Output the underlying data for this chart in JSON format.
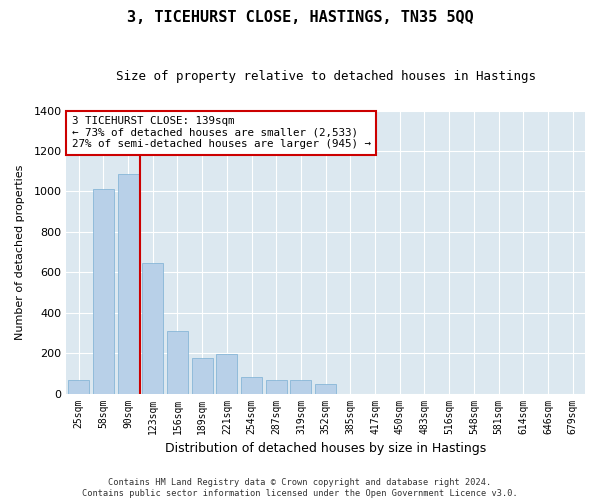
{
  "title": "3, TICEHURST CLOSE, HASTINGS, TN35 5QQ",
  "subtitle": "Size of property relative to detached houses in Hastings",
  "xlabel": "Distribution of detached houses by size in Hastings",
  "ylabel": "Number of detached properties",
  "footer_line1": "Contains HM Land Registry data © Crown copyright and database right 2024.",
  "footer_line2": "Contains public sector information licensed under the Open Government Licence v3.0.",
  "annotation_line1": "3 TICEHURST CLOSE: 139sqm",
  "annotation_line2": "← 73% of detached houses are smaller (2,533)",
  "annotation_line3": "27% of semi-detached houses are larger (945) →",
  "bar_color": "#b8d0e8",
  "bar_edge_color": "#7aafd4",
  "redline_color": "#cc0000",
  "annotation_box_color": "#cc0000",
  "fig_bg_color": "#ffffff",
  "plot_bg_color": "#dce8f0",
  "categories": [
    "25sqm",
    "58sqm",
    "90sqm",
    "123sqm",
    "156sqm",
    "189sqm",
    "221sqm",
    "254sqm",
    "287sqm",
    "319sqm",
    "352sqm",
    "385sqm",
    "417sqm",
    "450sqm",
    "483sqm",
    "516sqm",
    "548sqm",
    "581sqm",
    "614sqm",
    "646sqm",
    "679sqm"
  ],
  "values": [
    65,
    1010,
    1085,
    645,
    310,
    175,
    195,
    80,
    65,
    65,
    45,
    0,
    0,
    0,
    0,
    0,
    0,
    0,
    0,
    0,
    0
  ],
  "ylim": [
    0,
    1400
  ],
  "yticks": [
    0,
    200,
    400,
    600,
    800,
    1000,
    1200,
    1400
  ],
  "redline_x": 2.5,
  "figsize": [
    6.0,
    5.0
  ],
  "dpi": 100
}
